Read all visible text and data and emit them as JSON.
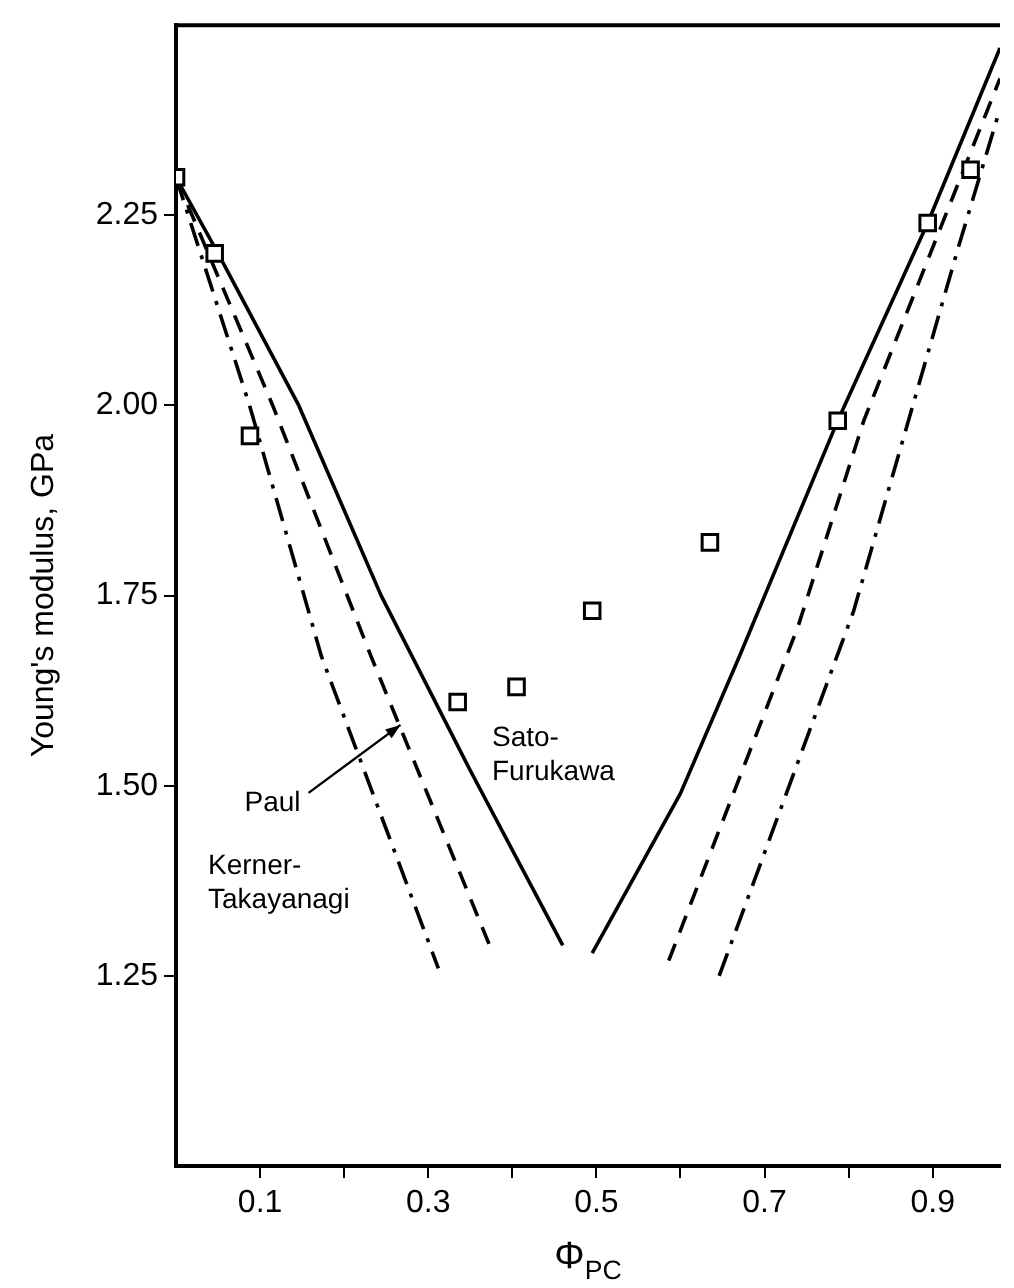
{
  "chart_data": {
    "type": "line",
    "xlabel": "Φ$_{PC}$",
    "ylabel": "Young's modulus, GPa",
    "xlim": [
      0,
      0.98
    ],
    "ylim": [
      1.0,
      2.5
    ],
    "xticks": [
      0.1,
      {
        "value": 0.2,
        "label": null
      },
      0.3,
      {
        "value": 0.4,
        "label": null
      },
      0.5,
      {
        "value": 0.6,
        "label": null
      },
      0.7,
      {
        "value": 0.8,
        "label": null
      },
      0.9
    ],
    "yticks": [
      1.25,
      {
        "value": 1.5,
        "label": "1.50"
      },
      1.75,
      {
        "value": 2,
        "label": "2.00"
      },
      2.25
    ],
    "series": [
      {
        "type": "scatter",
        "marker": "square",
        "color": "#000000",
        "x": [
          0,
          0.046,
          0.088,
          0.335,
          0.405,
          0.495,
          0.635,
          0.787,
          0.894,
          0.945
        ],
        "values": [
          2.3,
          2.2,
          1.96,
          1.61,
          1.63,
          1.73,
          1.82,
          1.98,
          2.24,
          2.31
        ]
      },
      {
        "line_style": "solid",
        "color": "#000000",
        "x": [
          0,
          0.05,
          0.146,
          0.244,
          0.35,
          0.46,
          null,
          0.495,
          0.6,
          0.67,
          0.787,
          0.894,
          0.98
        ],
        "values": [
          2.3,
          2.2,
          2.0,
          1.75,
          1.52,
          1.29,
          null,
          1.28,
          1.49,
          1.67,
          1.98,
          2.24,
          2.47
        ]
      },
      {
        "line_style": "dashed",
        "color": "#000000",
        "x": [
          0,
          0.115,
          0.232,
          0.373,
          null,
          0.586,
          0.74,
          0.818,
          0.98
        ],
        "values": [
          2.3,
          2.0,
          1.67,
          1.29,
          null,
          1.27,
          1.71,
          1.98,
          2.43
        ]
      },
      {
        "line_style": "dashdot",
        "color": "#000000",
        "x": [
          0,
          0.0875,
          0.173,
          0.312,
          null,
          0.646,
          0.806,
          0.931,
          0.98
        ],
        "values": [
          2.3,
          2.0,
          1.67,
          1.26,
          null,
          1.25,
          1.73,
          2.21,
          2.39
        ]
      }
    ],
    "annotations": [
      "Sato-Furukawa",
      {
        "text": "Paul",
        "x": 0.267,
        "y": 1.58
      },
      "Kerner-Takayanagi"
    ]
  }
}
